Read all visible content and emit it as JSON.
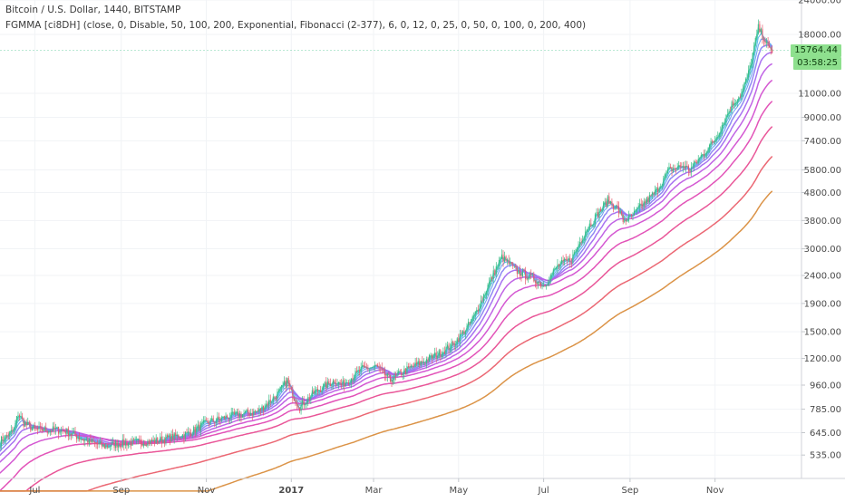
{
  "header": {
    "title": "Bitcoin / U.S. Dollar, 1440, BITSTAMP",
    "indicator": "FGMMA [ci8DH] (close, 0, Disable, 50, 100, 200, Exponential, Fibonacci (2-377), 6, 0, 12, 0, 25, 0, 50, 0, 100, 0, 200, 400)"
  },
  "price_labels": {
    "last_price": "15764.44",
    "countdown": "03:58:25"
  },
  "colors": {
    "price_label_bg": "#8ee08e",
    "axis_text": "#4a4a4a",
    "grid": "#f1f3f6",
    "candle_up": "#3dbd88",
    "candle_down": "#e7596c",
    "band_orange": "#d98d3d"
  },
  "chart_data": {
    "type": "candlestick-with-moving-average-ribbon",
    "title": "Bitcoin / U.S. Dollar, 1440, BITSTAMP",
    "y_scale": "log",
    "ylim": [
      440,
      24000
    ],
    "y_ticks": [
      "24000.00",
      "18000.00",
      "11000.00",
      "9000.00",
      "7400.00",
      "5800.00",
      "4800.00",
      "3800.00",
      "3000.00",
      "2400.00",
      "1900.00",
      "1500.00",
      "1200.00",
      "960.00",
      "785.00",
      "645.00",
      "535.00"
    ],
    "x_labels": [
      "Jul",
      "Sep",
      "Nov",
      "2017",
      "Mar",
      "May",
      "Jul",
      "Sep",
      "Nov"
    ],
    "x_label_days": [
      0,
      62,
      123,
      184,
      243,
      304,
      365,
      427,
      488
    ],
    "x_range_days": [
      -25,
      550
    ],
    "price_anchors": [
      [
        -25,
        600
      ],
      [
        -15,
        660
      ],
      [
        -12,
        760
      ],
      [
        -8,
        700
      ],
      [
        0,
        660
      ],
      [
        20,
        660
      ],
      [
        38,
        600
      ],
      [
        50,
        575
      ],
      [
        62,
        590
      ],
      [
        85,
        600
      ],
      [
        110,
        640
      ],
      [
        123,
        700
      ],
      [
        140,
        740
      ],
      [
        160,
        770
      ],
      [
        175,
        900
      ],
      [
        181,
        1000
      ],
      [
        184,
        900
      ],
      [
        190,
        800
      ],
      [
        200,
        900
      ],
      [
        215,
        1000
      ],
      [
        220,
        960
      ],
      [
        235,
        1100
      ],
      [
        245,
        1120
      ],
      [
        255,
        1000
      ],
      [
        265,
        1080
      ],
      [
        280,
        1180
      ],
      [
        290,
        1250
      ],
      [
        300,
        1350
      ],
      [
        310,
        1550
      ],
      [
        315,
        1700
      ],
      [
        325,
        2200
      ],
      [
        330,
        2500
      ],
      [
        335,
        2800
      ],
      [
        345,
        2500
      ],
      [
        360,
        2300
      ],
      [
        365,
        2200
      ],
      [
        375,
        2600
      ],
      [
        385,
        2750
      ],
      [
        395,
        3500
      ],
      [
        405,
        4100
      ],
      [
        411,
        4500
      ],
      [
        418,
        4200
      ],
      [
        422,
        3800
      ],
      [
        428,
        3900
      ],
      [
        435,
        4300
      ],
      [
        445,
        4800
      ],
      [
        455,
        5800
      ],
      [
        465,
        6000
      ],
      [
        470,
        5800
      ],
      [
        478,
        6500
      ],
      [
        488,
        7500
      ],
      [
        500,
        10000
      ],
      [
        507,
        11000
      ],
      [
        512,
        13000
      ],
      [
        517,
        17000
      ],
      [
        519,
        19000
      ],
      [
        523,
        17500
      ],
      [
        526,
        16000
      ],
      [
        529,
        15764
      ]
    ],
    "ema_periods": [
      2,
      3,
      5,
      8,
      13,
      21,
      34,
      55,
      89,
      144,
      233,
      377
    ],
    "last_price": 15764.44,
    "countdown": "03:58:25"
  }
}
